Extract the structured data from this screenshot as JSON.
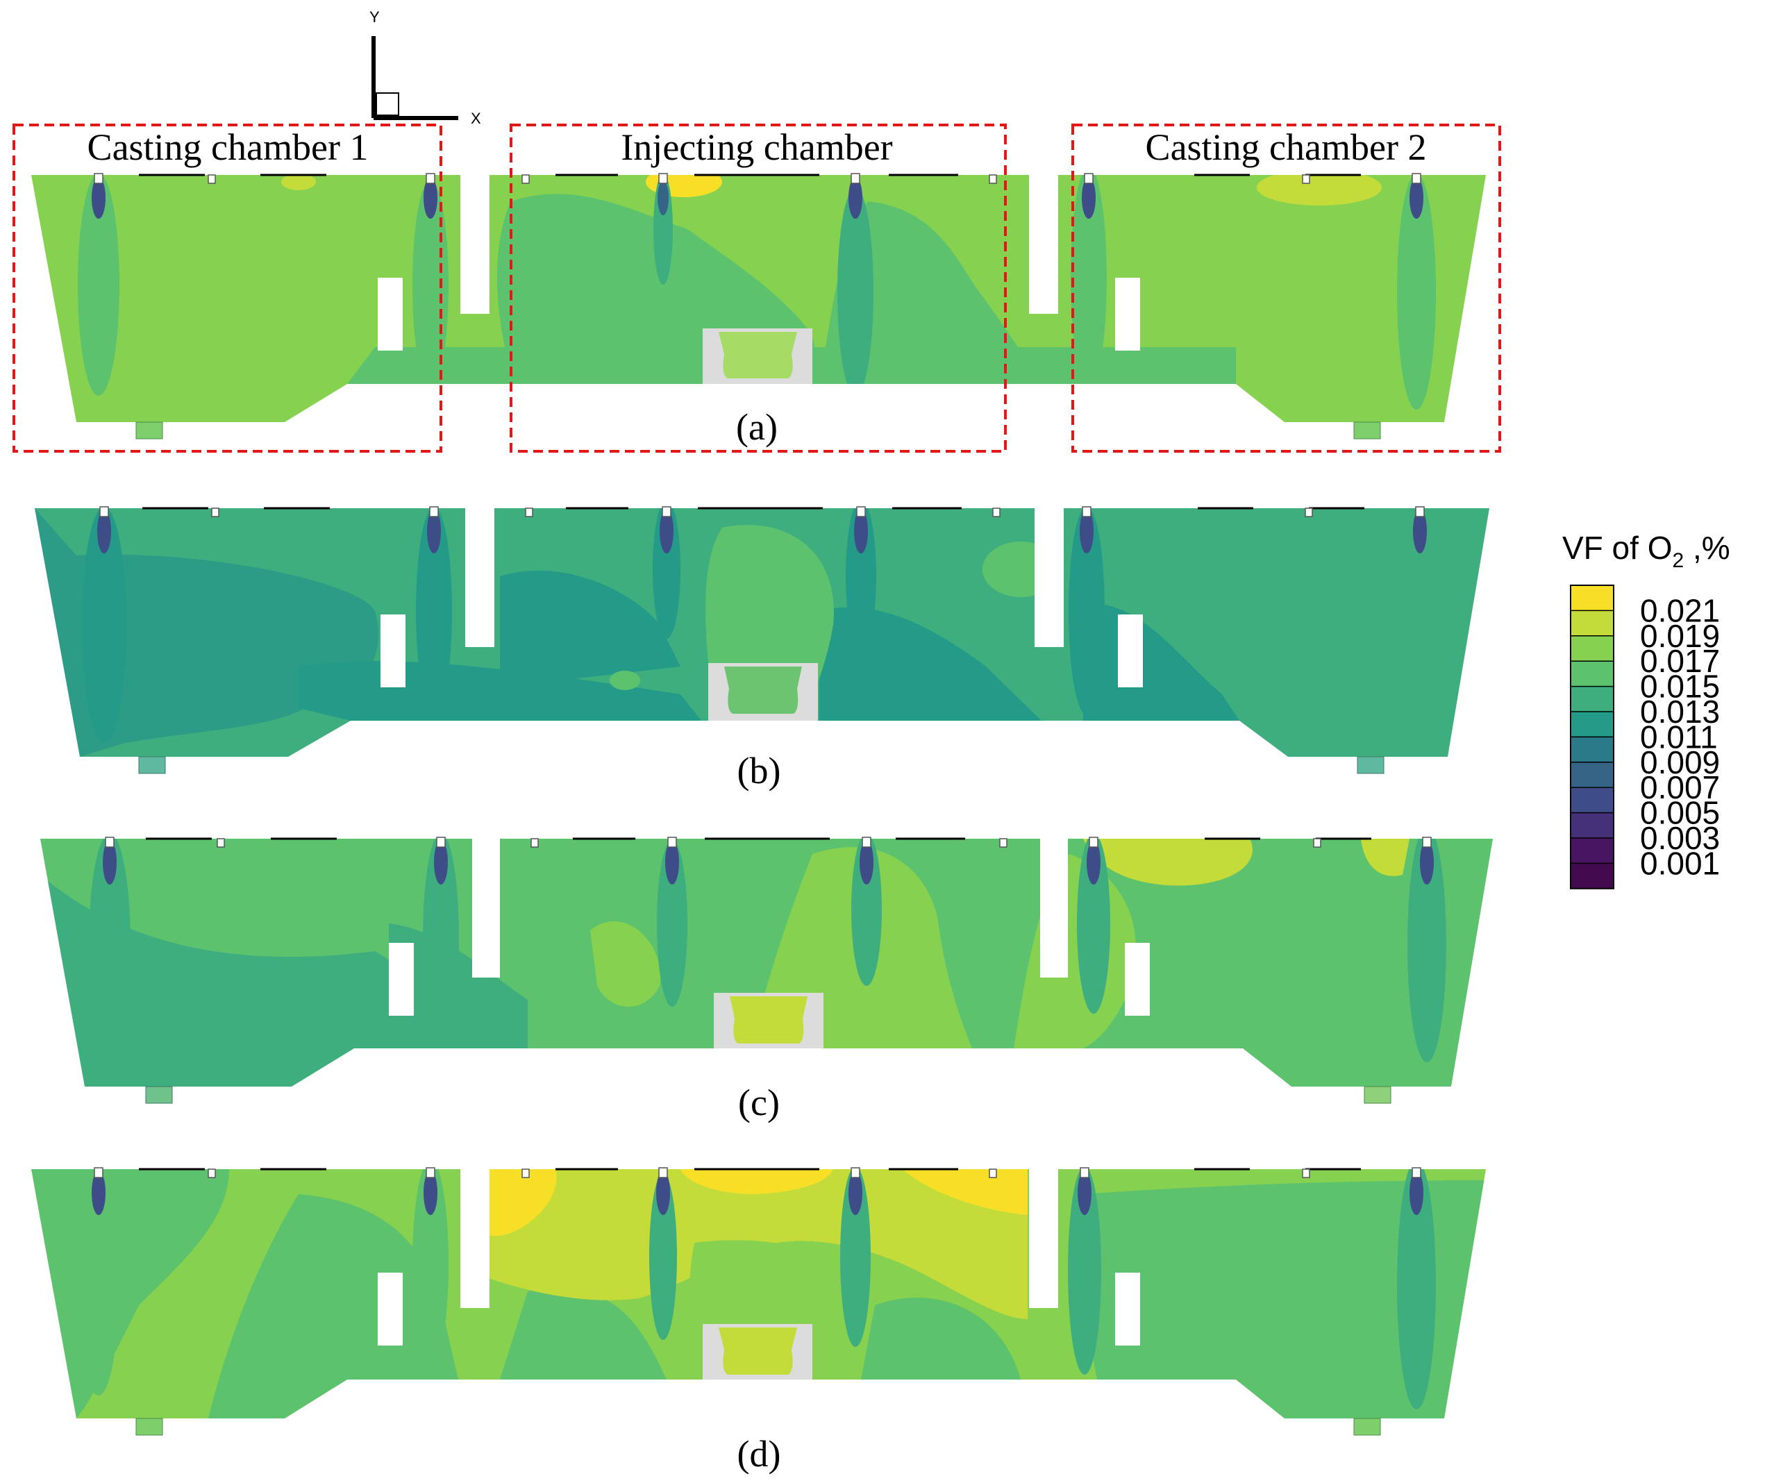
{
  "axes_indicator": {
    "y_label": "Y",
    "x_label": "X"
  },
  "region_labels": {
    "casting_chamber_1": "Casting chamber 1",
    "injecting_chamber": "Injecting chamber",
    "casting_chamber_2": "Casting chamber 2"
  },
  "panels": [
    {
      "label": "(a)",
      "base_level": "0.017"
    },
    {
      "label": "(b)",
      "base_level": "0.013"
    },
    {
      "label": "(c)",
      "base_level": "0.015"
    },
    {
      "label": "(d)",
      "base_level": "0.017"
    }
  ],
  "legend": {
    "title_prefix": "VF of O",
    "title_subscript": "2",
    "title_suffix": " ,%",
    "levels": [
      "0.021",
      "0.019",
      "0.017",
      "0.015",
      "0.013",
      "0.011",
      "0.009",
      "0.007",
      "0.005",
      "0.003",
      "0.001"
    ],
    "colors": [
      "#f7df27",
      "#c4dc3a",
      "#86d150",
      "#5cc26e",
      "#3fae7f",
      "#249a88",
      "#2a7a8a",
      "#356487",
      "#3e4c88",
      "#45307a",
      "#471562",
      "#440a4f"
    ]
  },
  "colors": {
    "dashed_box": "#e01818",
    "nozzle_plume": "#3a8f86",
    "bath_inlet": "#dcdcdc"
  }
}
